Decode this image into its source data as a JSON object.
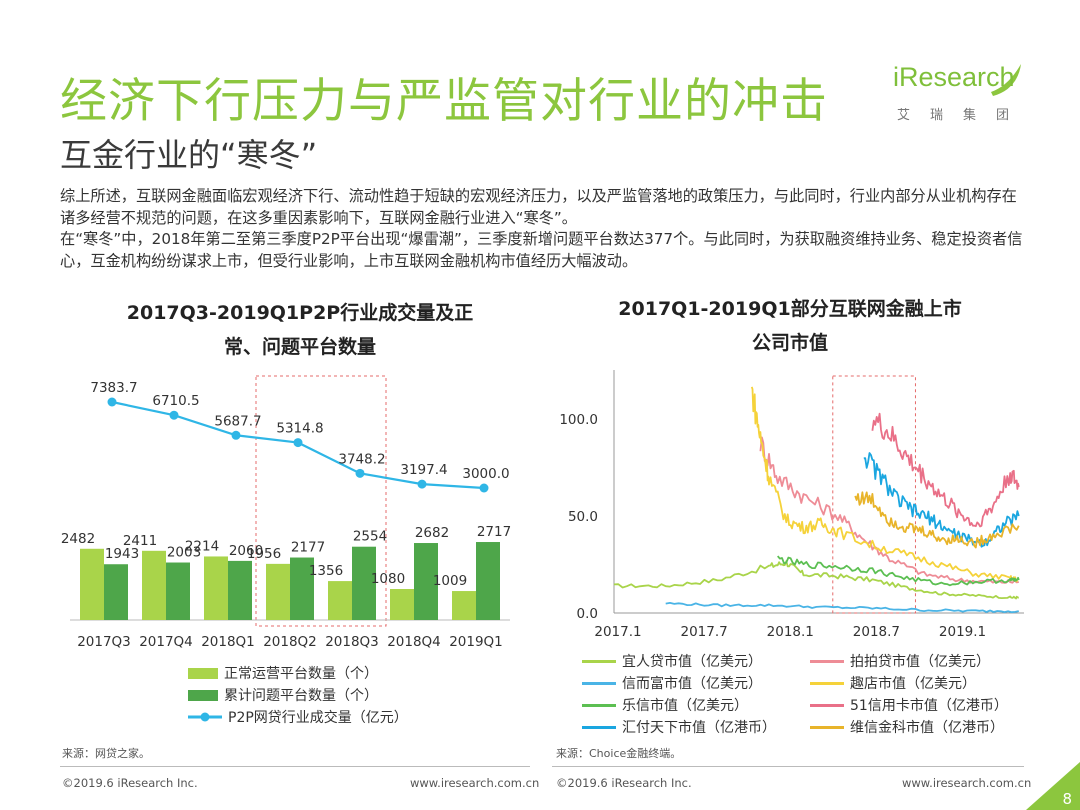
{
  "header": {
    "title": "经济下行压力与严监管对行业的冲击",
    "subtitle": "互金行业的“寒冬”",
    "logo_text": "iResearch",
    "logo_cn": "艾瑞集团"
  },
  "body": {
    "para1": "综上所述，互联网金融面临宏观经济下行、流动性趋于短缺的宏观经济压力，以及严监管落地的政策压力，与此同时，行业内部分从业机构存在诸多经营不规范的问题，在这多重因素影响下，互联网金融行业进入“寒冬”。",
    "para2": "在“寒冬”中，2018年第二至第三季度P2P平台出现“爆雷潮”，三季度新增问题平台数达377个。与此同时，为获取融资维持业务、稳定投资者信心，互金机构纷纷谋求上市，但受行业影响，上市互联网金融机构市值经历大幅波动。"
  },
  "chart1": {
    "title_line1": "2017Q3-2019Q1P2P行业成交量及正",
    "title_line2": "常、问题平台数量",
    "legend": [
      "正常运营平台数量（个）",
      "累计问题平台数量（个）",
      "P2P网贷行业成交量（亿元）"
    ],
    "source": "来源：网贷之家。"
  },
  "chart2": {
    "title_line1": "2017Q1-2019Q1部分互联网金融上市",
    "title_line2": "公司市值",
    "source": "来源：Choice金融终端。",
    "legend": [
      "宜人贷市值（亿美元）",
      "拍拍贷市值（亿美元）",
      "信而富市值（亿美元）",
      "趣店市值（亿美元）",
      "乐信市值（亿美元）",
      "51信用卡市值（亿港币）",
      "汇付天下市值（亿港币）",
      "维信金科市值（亿港币）"
    ]
  },
  "footer": {
    "copyright_left": "©2019.6 iResearch Inc.",
    "url_left": "www.iresearch.com.cn",
    "copyright_right": "©2019.6 iResearch Inc.",
    "url_right": "www.iresearch.com.cn",
    "page_number": "8"
  },
  "colors": {
    "title_green": "#8cc63e",
    "normal_bar": "#a9d44a",
    "problem_bar": "#4ea64a",
    "volume_line": "#2fb6e6",
    "highlight_box": "#e56b6b"
  },
  "chart_data": [
    {
      "type": "bar",
      "categories": [
        "2017Q3",
        "2017Q4",
        "2018Q1",
        "2018Q2",
        "2018Q3",
        "2018Q4",
        "2019Q1"
      ],
      "series": [
        {
          "name": "正常运营平台数量（个）",
          "values": [
            2482,
            2411,
            2214,
            1956,
            1356,
            1080,
            1009
          ]
        },
        {
          "name": "累计问题平台数量（个）",
          "values": [
            1943,
            2003,
            2060,
            2177,
            2554,
            2682,
            2717
          ]
        },
        {
          "name": "P2P网贷行业成交量（亿元）",
          "type": "line",
          "values": [
            7383.7,
            6710.5,
            5687.7,
            5314.8,
            3748.2,
            3197.4,
            3000.0
          ]
        }
      ],
      "highlight_categories": [
        "2018Q2",
        "2018Q3"
      ]
    },
    {
      "type": "line",
      "x_ticks": [
        "2017.1",
        "2017.7",
        "2018.1",
        "2018.7",
        "2019.1"
      ],
      "y_ticks": [
        "0.0",
        "50.0",
        "100.0"
      ],
      "ylim": [
        0,
        120
      ],
      "x_range": [
        "2017.1",
        "2019.4"
      ],
      "highlight_range": [
        "2018.4",
        "2018.10"
      ],
      "series": [
        {
          "name": "宜人贷市值（亿美元）",
          "color": "#a9d44a",
          "points": [
            [
              2017.0,
              14
            ],
            [
              2017.3,
              14
            ],
            [
              2017.6,
              17
            ],
            [
              2017.9,
              24
            ],
            [
              2018.0,
              26
            ],
            [
              2018.1,
              20
            ],
            [
              2018.3,
              19
            ],
            [
              2018.5,
              17
            ],
            [
              2018.7,
              13
            ],
            [
              2018.9,
              10
            ],
            [
              2019.1,
              9
            ],
            [
              2019.3,
              8
            ],
            [
              2019.35,
              8
            ]
          ]
        },
        {
          "name": "拍拍贷市值（亿美元）",
          "color": "#ee8c96",
          "points": [
            [
              2017.85,
              88
            ],
            [
              2017.95,
              70
            ],
            [
              2018.1,
              60
            ],
            [
              2018.3,
              50
            ],
            [
              2018.45,
              38
            ],
            [
              2018.6,
              28
            ],
            [
              2018.8,
              20
            ],
            [
              2019.0,
              17
            ],
            [
              2019.2,
              16
            ],
            [
              2019.35,
              16
            ]
          ]
        },
        {
          "name": "信而富市值（亿美元）",
          "color": "#4ab4e6",
          "points": [
            [
              2017.3,
              5
            ],
            [
              2017.6,
              4
            ],
            [
              2017.9,
              4
            ],
            [
              2018.2,
              3
            ],
            [
              2018.5,
              2.5
            ],
            [
              2018.8,
              1.5
            ],
            [
              2019.1,
              1
            ],
            [
              2019.35,
              1
            ]
          ]
        },
        {
          "name": "趣店市值（亿美元）",
          "color": "#f5d23a",
          "points": [
            [
              2017.8,
              115
            ],
            [
              2017.85,
              90
            ],
            [
              2017.9,
              70
            ],
            [
              2018.0,
              48
            ],
            [
              2018.1,
              44
            ],
            [
              2018.2,
              46
            ],
            [
              2018.3,
              42
            ],
            [
              2018.5,
              35
            ],
            [
              2018.7,
              30
            ],
            [
              2018.9,
              25
            ],
            [
              2019.1,
              20
            ],
            [
              2019.3,
              18
            ],
            [
              2019.35,
              17
            ]
          ]
        },
        {
          "name": "乐信市值（亿美元）",
          "color": "#5cbf52",
          "points": [
            [
              2017.95,
              28
            ],
            [
              2018.1,
              25
            ],
            [
              2018.3,
              24
            ],
            [
              2018.5,
              22
            ],
            [
              2018.7,
              18
            ],
            [
              2018.9,
              15
            ],
            [
              2019.1,
              16
            ],
            [
              2019.3,
              17
            ],
            [
              2019.35,
              17
            ]
          ]
        },
        {
          "name": "51信用卡市值（亿港币）",
          "color": "#e97088",
          "points": [
            [
              2018.5,
              100
            ],
            [
              2018.6,
              92
            ],
            [
              2018.7,
              80
            ],
            [
              2018.8,
              70
            ],
            [
              2018.9,
              60
            ],
            [
              2019.0,
              52
            ],
            [
              2019.1,
              45
            ],
            [
              2019.2,
              55
            ],
            [
              2019.3,
              72
            ],
            [
              2019.35,
              65
            ]
          ]
        },
        {
          "name": "汇付天下市值（亿港币）",
          "color": "#1aa6e0",
          "points": [
            [
              2018.45,
              82
            ],
            [
              2018.55,
              70
            ],
            [
              2018.65,
              58
            ],
            [
              2018.75,
              52
            ],
            [
              2018.85,
              48
            ],
            [
              2018.95,
              42
            ],
            [
              2019.05,
              38
            ],
            [
              2019.15,
              36
            ],
            [
              2019.25,
              45
            ],
            [
              2019.35,
              50
            ]
          ]
        },
        {
          "name": "维信金科市值（亿港币）",
          "color": "#e8b42a",
          "points": [
            [
              2018.4,
              60
            ],
            [
              2018.5,
              58
            ],
            [
              2018.6,
              48
            ],
            [
              2018.7,
              44
            ],
            [
              2018.8,
              42
            ],
            [
              2018.9,
              38
            ],
            [
              2019.0,
              38
            ],
            [
              2019.1,
              36
            ],
            [
              2019.2,
              40
            ],
            [
              2019.35,
              45
            ]
          ]
        }
      ]
    }
  ]
}
